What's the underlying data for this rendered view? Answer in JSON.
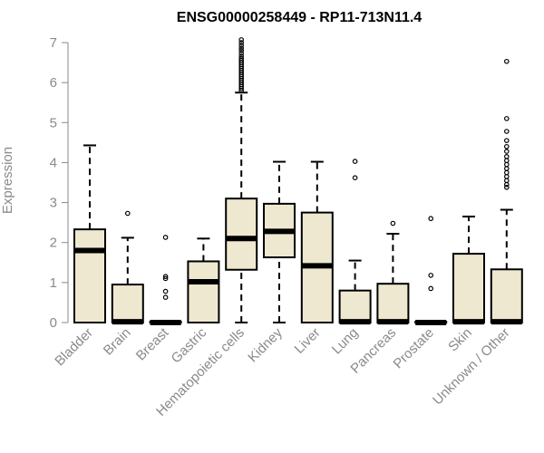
{
  "colors": {
    "box_fill": "#efe8d0",
    "stroke": "#000000",
    "axis_gray": "#8a8a8a"
  },
  "chart_data": {
    "type": "boxplot",
    "title": "ENSG00000258449 - RP11-713N11.4",
    "xlabel": "",
    "ylabel": "Expression",
    "ylim": [
      0,
      7
    ],
    "yticks": [
      0,
      1,
      2,
      3,
      4,
      5,
      6,
      7
    ],
    "categories": [
      "Bladder",
      "Brain",
      "Breast",
      "Gastric",
      "Hematopoietic cells",
      "Kidney",
      "Liver",
      "Lung",
      "Pancreas",
      "Prostate",
      "Skin",
      "Unknown / Other"
    ],
    "boxes": [
      {
        "category": "Bladder",
        "min": 0,
        "q1": 0,
        "median": 1.8,
        "q3": 2.33,
        "max": 4.43,
        "outliers": []
      },
      {
        "category": "Brain",
        "min": 0,
        "q1": 0,
        "median": 0.02,
        "q3": 0.95,
        "max": 2.12,
        "outliers": [
          2.73
        ]
      },
      {
        "category": "Breast",
        "min": 0,
        "q1": 0,
        "median": 0.0,
        "q3": 0.02,
        "max": 0.02,
        "outliers": [
          2.13,
          1.15,
          1.1,
          0.78,
          0.63
        ]
      },
      {
        "category": "Gastric",
        "min": 0,
        "q1": 0,
        "median": 1.02,
        "q3": 1.53,
        "max": 2.1,
        "outliers": []
      },
      {
        "category": "Hematopoietic cells",
        "min": 0,
        "q1": 1.32,
        "median": 2.1,
        "q3": 3.1,
        "max": 5.75,
        "outliers": [
          7.07,
          7.0,
          6.93,
          6.86,
          6.8,
          6.73,
          6.66,
          6.6,
          6.55,
          6.5,
          6.45,
          6.4,
          6.35,
          6.3,
          6.25,
          6.2,
          6.15,
          6.1,
          6.05,
          6.0,
          5.95,
          5.9,
          5.85,
          5.8
        ]
      },
      {
        "category": "Kidney",
        "min": 0,
        "q1": 1.63,
        "median": 2.28,
        "q3": 2.97,
        "max": 4.02,
        "outliers": []
      },
      {
        "category": "Liver",
        "min": 0,
        "q1": 0,
        "median": 1.42,
        "q3": 2.75,
        "max": 4.02,
        "outliers": []
      },
      {
        "category": "Lung",
        "min": 0,
        "q1": 0,
        "median": 0.02,
        "q3": 0.8,
        "max": 1.55,
        "outliers": [
          4.03,
          3.62
        ]
      },
      {
        "category": "Pancreas",
        "min": 0,
        "q1": 0,
        "median": 0.02,
        "q3": 0.97,
        "max": 2.22,
        "outliers": [
          2.48
        ]
      },
      {
        "category": "Prostate",
        "min": 0,
        "q1": 0,
        "median": 0.0,
        "q3": 0.02,
        "max": 0.02,
        "outliers": [
          2.6,
          1.18,
          0.85
        ]
      },
      {
        "category": "Skin",
        "min": 0,
        "q1": 0,
        "median": 0.02,
        "q3": 1.72,
        "max": 2.65,
        "outliers": []
      },
      {
        "category": "Unknown / Other",
        "min": 0,
        "q1": 0,
        "median": 0.02,
        "q3": 1.33,
        "max": 2.82,
        "outliers": [
          6.53,
          5.1,
          4.78,
          4.55,
          4.4,
          4.28,
          4.15,
          4.05,
          3.95,
          3.85,
          3.75,
          3.65,
          3.55,
          3.45,
          3.38
        ]
      }
    ]
  }
}
